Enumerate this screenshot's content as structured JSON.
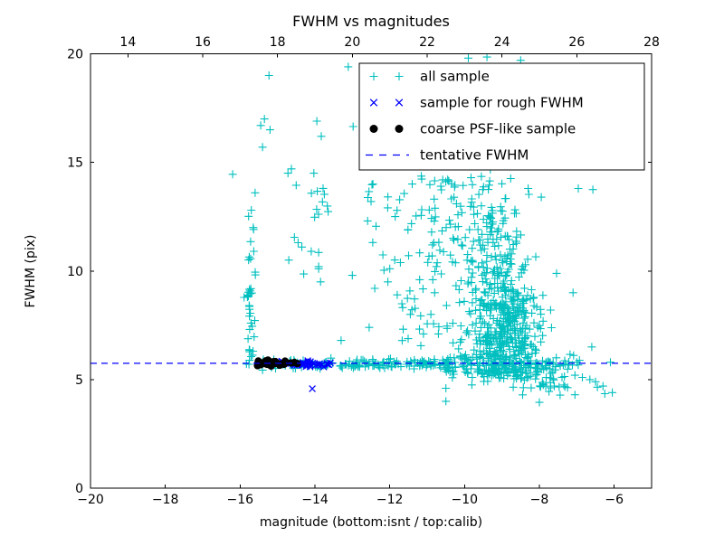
{
  "title": "FWHM vs magnitudes",
  "axes": {
    "x_bottom": {
      "label": "magnitude (bottom:isnt / top:calib)",
      "range": [
        -20,
        -5
      ],
      "ticks": [
        -20,
        -18,
        -16,
        -14,
        -12,
        -10,
        -8,
        -6
      ],
      "tick_labels": [
        "−20",
        "−18",
        "−16",
        "−14",
        "−12",
        "−10",
        "−8",
        "−6"
      ]
    },
    "x_top": {
      "range": [
        13,
        28
      ],
      "ticks": [
        14,
        16,
        18,
        20,
        22,
        24,
        26,
        28
      ],
      "tick_labels": [
        "14",
        "16",
        "18",
        "20",
        "22",
        "24",
        "26",
        "28"
      ]
    },
    "y": {
      "label": "FWHM (pix)",
      "range": [
        0,
        20
      ],
      "ticks": [
        0,
        5,
        10,
        15,
        20
      ],
      "tick_labels": [
        "0",
        "5",
        "10",
        "15",
        "20"
      ]
    }
  },
  "legend": {
    "entries": [
      {
        "label": "all sample",
        "marker": "plus",
        "color": "#00BFBF"
      },
      {
        "label": "sample for rough FWHM",
        "marker": "x",
        "color": "#0000FF"
      },
      {
        "label": "coarse PSF-like sample",
        "marker": "dot",
        "color": "#000000"
      },
      {
        "label": "tentative FWHM",
        "marker": "dash",
        "color": "#0000FF"
      }
    ]
  },
  "chart_data": {
    "type": "scatter",
    "title": "FWHM vs magnitudes",
    "xlabel": "magnitude (bottom:isnt / top:calib)",
    "ylabel": "FWHM (pix)",
    "x_range": [
      -20,
      -5
    ],
    "y_range": [
      0,
      20
    ],
    "x_top_range": [
      13,
      28
    ],
    "grid": false,
    "legend_position": "upper right",
    "tentative_fwhm": {
      "label": "tentative FWHM",
      "value": 5.75,
      "color": "#0000FF",
      "style": "dashed"
    },
    "series": [
      {
        "name": "all sample",
        "marker": "plus",
        "color": "#00BFBF",
        "points": [
          [
            -15.23,
            19.0
          ],
          [
            -15.35,
            17.0
          ],
          [
            -15.45,
            16.7
          ],
          [
            -15.2,
            16.5
          ],
          [
            -15.4,
            15.7
          ],
          [
            -16.2,
            14.45
          ],
          [
            -15.6,
            13.6
          ],
          [
            -15.7,
            12.8
          ],
          [
            -15.65,
            12.0
          ],
          [
            -15.72,
            11.35
          ],
          [
            -14.63,
            14.7
          ],
          [
            -14.72,
            14.5
          ],
          [
            -14.5,
            13.95
          ],
          [
            -14.03,
            14.5
          ],
          [
            -13.95,
            16.9
          ],
          [
            -13.83,
            16.2
          ],
          [
            -13.11,
            19.4
          ],
          [
            -12.98,
            16.65
          ],
          [
            -12.45,
            14.0
          ],
          [
            -12.5,
            13.2
          ],
          [
            -13.9,
            10.2
          ],
          [
            -14.7,
            10.5
          ],
          [
            -14.55,
            11.55
          ],
          [
            -14.45,
            11.3
          ],
          [
            -14.35,
            11.1
          ],
          [
            -14.1,
            10.9
          ],
          [
            -13.9,
            10.85
          ],
          [
            -14.3,
            9.86
          ],
          [
            -13.9,
            10.1
          ],
          [
            -13.85,
            9.5
          ],
          [
            -13.0,
            9.8
          ],
          [
            -12.4,
            9.2
          ],
          [
            -12.0,
            10.1
          ],
          [
            -12.05,
            9.5
          ],
          [
            -11.8,
            8.9
          ],
          [
            -11.45,
            8.0
          ],
          [
            -11.2,
            9.6
          ],
          [
            -10.85,
            9.6
          ],
          [
            -10.8,
            9.0
          ],
          [
            -10.9,
            8.0
          ],
          [
            -11.1,
            7.1
          ],
          [
            -10.7,
            7.1
          ],
          [
            -12.55,
            7.4
          ],
          [
            -13.3,
            6.8
          ],
          [
            -11.4,
            14.0
          ],
          [
            -10.8,
            14.15
          ],
          [
            -10.45,
            14.2
          ],
          [
            -9.55,
            14.35
          ],
          [
            -9.9,
            19.8
          ],
          [
            -9.4,
            19.85
          ],
          [
            -8.5,
            19.7
          ],
          [
            -8.3,
            13.8
          ],
          [
            -7.95,
            13.4
          ],
          [
            -6.96,
            13.8
          ],
          [
            -6.57,
            13.75
          ],
          [
            -7.1,
            9.0
          ],
          [
            -7.7,
            8.2
          ],
          [
            -6.6,
            6.5
          ],
          [
            -7.0,
            5.8
          ],
          [
            -6.1,
            5.8
          ],
          [
            -6.85,
            5.1
          ],
          [
            -6.5,
            4.9
          ],
          [
            -6.3,
            4.7
          ],
          [
            -6.05,
            4.4
          ],
          [
            -7.05,
            4.3
          ],
          [
            -7.35,
            4.75
          ],
          [
            -8.0,
            3.95
          ],
          [
            -10.5,
            4.6
          ],
          [
            -10.5,
            4.0
          ],
          [
            -8.7,
            4.65
          ],
          [
            -7.9,
            4.8
          ],
          [
            -7.6,
            4.7
          ],
          [
            -7.05,
            5.2
          ],
          [
            -6.65,
            5.0
          ],
          [
            -6.45,
            4.65
          ],
          [
            -6.25,
            4.35
          ]
        ],
        "clusters": [
          {
            "n": 30,
            "x": [
              "normal",
              -15.73,
              0.05
            ],
            "y": [
              "uniform",
              5.6,
              9.4
            ]
          },
          {
            "n": 8,
            "x": [
              "normal",
              -15.65,
              0.1
            ],
            "y": [
              "uniform",
              9.5,
              12.9
            ]
          },
          {
            "n": 10,
            "x": [
              "uniform",
              -14.1,
              -13.6
            ],
            "y": [
              "uniform",
              12.4,
              14.0
            ]
          },
          {
            "n": 170,
            "x": [
              "uniform",
              -15.4,
              -10.4
            ],
            "y": [
              "normal",
              5.72,
              0.11
            ]
          },
          {
            "n": 150,
            "x": [
              "uniform",
              -10.5,
              -8.0
            ],
            "y": [
              "normal",
              5.55,
              0.3
            ]
          },
          {
            "n": 20,
            "x": [
              "uniform",
              -8.0,
              -6.9
            ],
            "y": [
              "normal",
              5.7,
              0.18
            ]
          },
          {
            "n": 430,
            "x": [
              "normal",
              -8.95,
              0.52
            ],
            "clip_x": [
              -10.6,
              -7.3
            ],
            "y": [
              "normal",
              7.4,
              1.5
            ],
            "clip_y": [
              4.9,
              11.9
            ]
          },
          {
            "n": 90,
            "x": [
              "normal",
              -9.15,
              0.33
            ],
            "y": [
              "normal",
              11.6,
              1.25
            ],
            "clip_y": [
              9.6,
              14.4
            ]
          },
          {
            "n": 26,
            "x": [
              "uniform",
              -12.65,
              -11.0
            ],
            "y": [
              "uniform",
              9.7,
              14.4
            ]
          },
          {
            "n": 60,
            "x": [
              "uniform",
              -11.0,
              -9.7
            ],
            "y": [
              "uniform",
              9.7,
              14.5
            ]
          },
          {
            "n": 25,
            "x": [
              "uniform",
              -11.7,
              -9.9
            ],
            "y": [
              "uniform",
              6.4,
              9.7
            ]
          },
          {
            "n": 40,
            "x": [
              "normal",
              -7.95,
              0.35
            ],
            "clip_x": [
              -8.6,
              -7.05
            ],
            "y": [
              "normal",
              5.15,
              0.5
            ],
            "clip_y": [
              3.9,
              6.3
            ]
          },
          {
            "n": 10,
            "x": [
              "uniform",
              -10.2,
              -8.4
            ],
            "y": [
              "uniform",
              14.5,
              16.0
            ]
          }
        ]
      },
      {
        "name": "sample for rough FWHM",
        "marker": "x",
        "color": "#0000FF",
        "points": [
          [
            -14.07,
            4.58
          ]
        ],
        "clusters": [
          {
            "n": 32,
            "x": [
              "uniform",
              -14.65,
              -13.58
            ],
            "y": [
              "normal",
              5.73,
              0.07
            ]
          },
          {
            "n": 6,
            "x": [
              "uniform",
              -15.05,
              -14.62
            ],
            "y": [
              "normal",
              5.78,
              0.05
            ]
          }
        ]
      },
      {
        "name": "coarse PSF-like sample",
        "marker": "dot",
        "color": "#000000",
        "points": [],
        "clusters": [
          {
            "n": 42,
            "x": [
              "uniform",
              -15.55,
              -14.45
            ],
            "y": [
              "normal",
              5.76,
              0.06
            ]
          }
        ]
      }
    ]
  }
}
